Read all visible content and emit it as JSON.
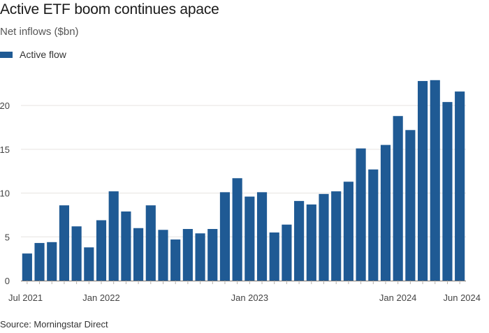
{
  "title": "Active ETF boom continues apace",
  "subtitle": "Net inflows ($bn)",
  "legend": {
    "label": "Active flow",
    "color": "#1f5a94"
  },
  "source": "Source: Morningstar Direct",
  "chart_data": {
    "type": "bar",
    "x": [
      "Jul 2021",
      "Aug 2021",
      "Sep 2021",
      "Oct 2021",
      "Nov 2021",
      "Dec 2021",
      "Jan 2022",
      "Feb 2022",
      "Mar 2022",
      "Apr 2022",
      "May 2022",
      "Jun 2022",
      "Jul 2022",
      "Aug 2022",
      "Sep 2022",
      "Oct 2022",
      "Nov 2022",
      "Dec 2022",
      "Jan 2023",
      "Feb 2023",
      "Mar 2023",
      "Apr 2023",
      "May 2023",
      "Jun 2023",
      "Jul 2023",
      "Aug 2023",
      "Sep 2023",
      "Oct 2023",
      "Nov 2023",
      "Dec 2023",
      "Jan 2024",
      "Feb 2024",
      "Mar 2024",
      "Apr 2024",
      "May 2024",
      "Jun 2024"
    ],
    "series": [
      {
        "name": "Active flow",
        "values": [
          3.1,
          4.3,
          4.4,
          8.6,
          6.2,
          3.8,
          6.9,
          10.2,
          7.9,
          6.0,
          8.6,
          5.8,
          4.7,
          5.9,
          5.4,
          5.9,
          10.1,
          11.7,
          9.6,
          10.1,
          5.5,
          6.4,
          9.1,
          8.7,
          9.9,
          10.2,
          11.3,
          15.1,
          12.7,
          15.5,
          18.8,
          17.2,
          22.8,
          22.9,
          20.4,
          21.6
        ]
      }
    ],
    "x_tick_labels": [
      "Jul 2021",
      "Jan 2022",
      "Jan 2023",
      "Jan 2024",
      "Jun 2024"
    ],
    "x_tick_indices": [
      0,
      6,
      18,
      30,
      35
    ],
    "y_ticks": [
      0,
      5,
      10,
      15,
      20
    ],
    "ylim": [
      0,
      24
    ],
    "grid": true,
    "legend_position": "top-left",
    "bar_color": "#1f5a94"
  }
}
